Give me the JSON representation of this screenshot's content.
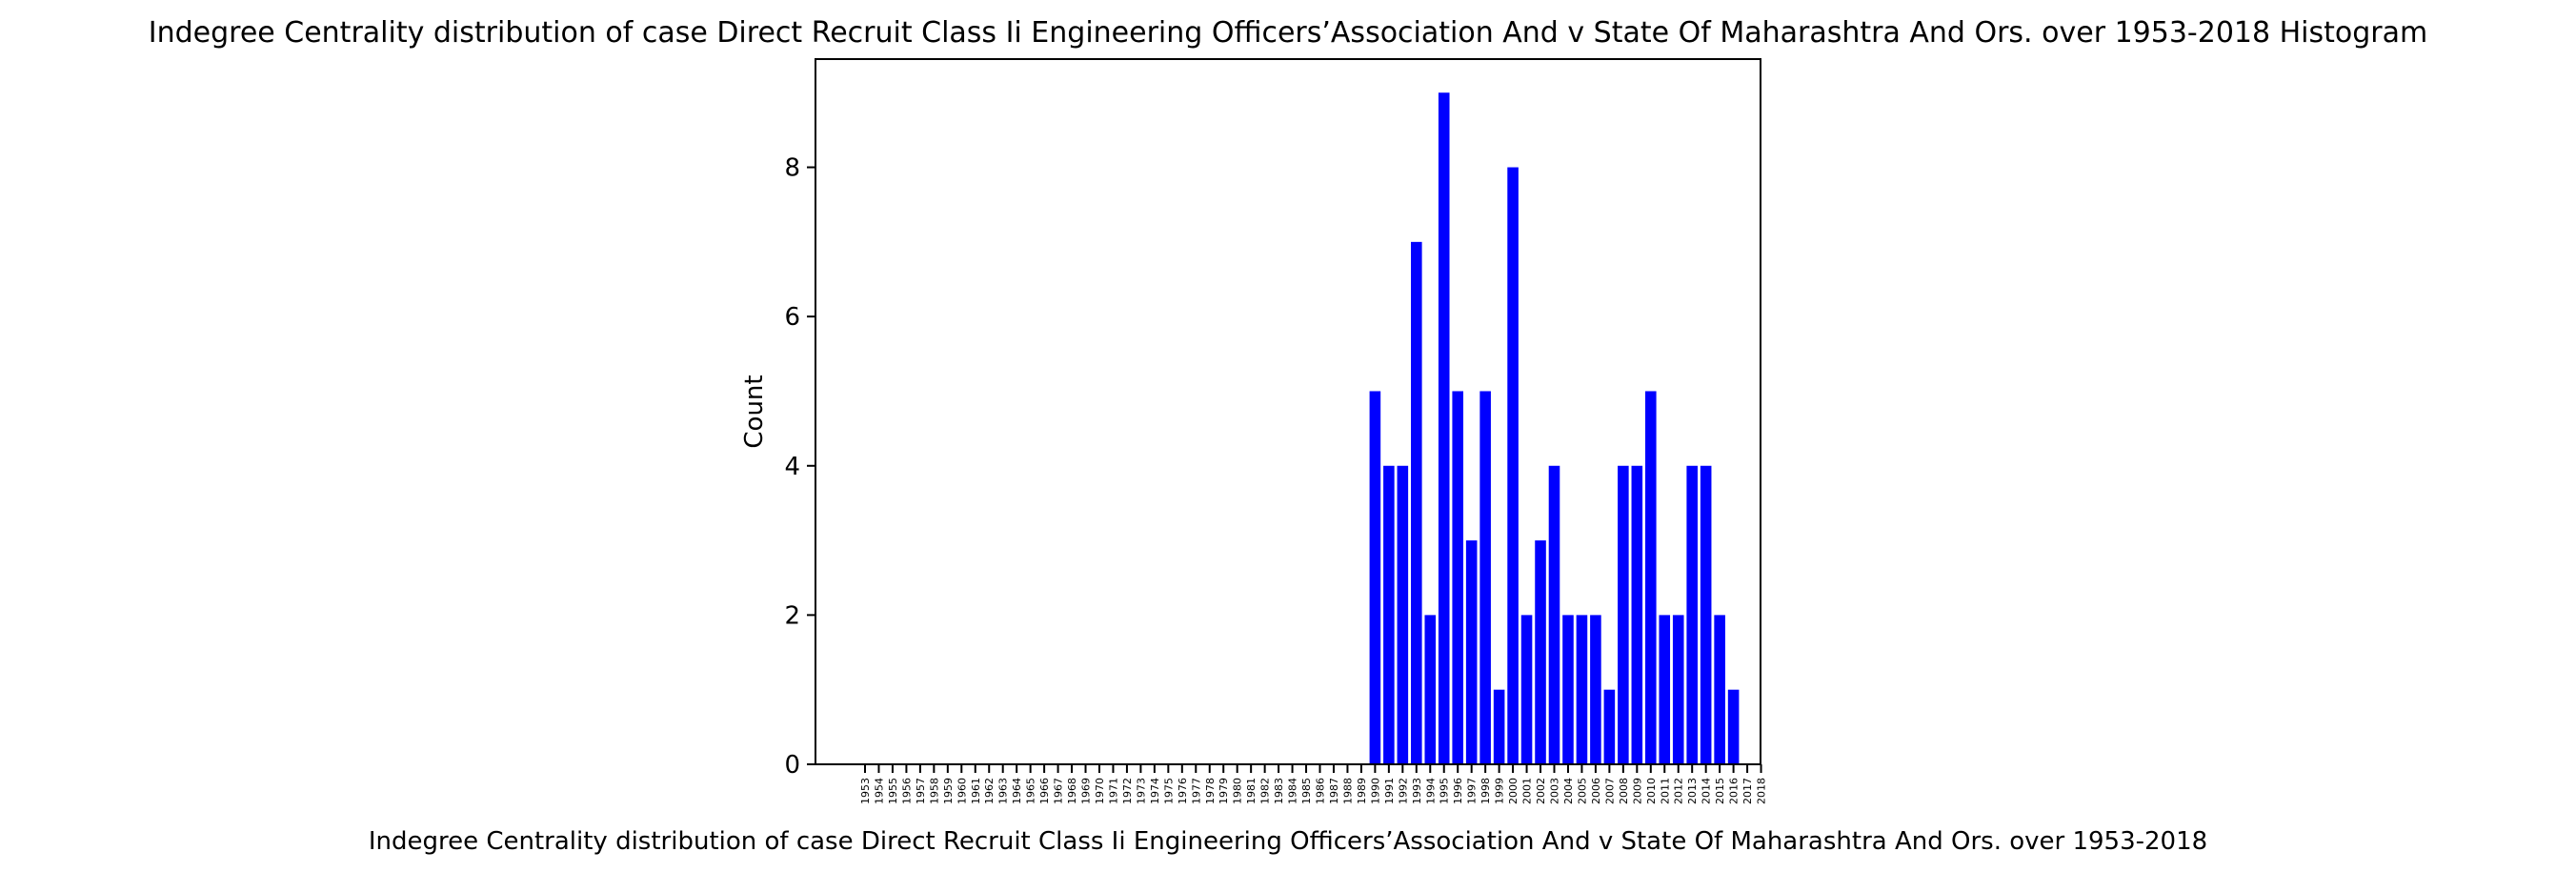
{
  "chart_data": {
    "type": "bar",
    "title": "Indegree Centrality distribution of case Direct Recruit Class Ii Engineering Officers’Association And v State Of Maharashtra And Ors. over 1953-2018 Histogram",
    "xlabel": "Indegree Centrality distribution of case Direct Recruit Class Ii Engineering Officers’Association And v State Of Maharashtra And Ors. over 1953-2018",
    "ylabel": "Count",
    "ylim": [
      0,
      9.45
    ],
    "yticks": [
      0,
      2,
      4,
      6,
      8
    ],
    "grid": false,
    "bar_color": "#0000ff",
    "categories": [
      "1953",
      "1954",
      "1955",
      "1956",
      "1957",
      "1958",
      "1959",
      "1960",
      "1961",
      "1962",
      "1963",
      "1964",
      "1965",
      "1966",
      "1967",
      "1968",
      "1969",
      "1970",
      "1971",
      "1972",
      "1973",
      "1974",
      "1975",
      "1976",
      "1977",
      "1978",
      "1979",
      "1980",
      "1981",
      "1982",
      "1983",
      "1984",
      "1985",
      "1986",
      "1987",
      "1988",
      "1989",
      "1990",
      "1991",
      "1992",
      "1993",
      "1994",
      "1995",
      "1996",
      "1997",
      "1998",
      "1999",
      "2000",
      "2001",
      "2002",
      "2003",
      "2004",
      "2005",
      "2006",
      "2007",
      "2008",
      "2009",
      "2010",
      "2011",
      "2012",
      "2013",
      "2014",
      "2015",
      "2016",
      "2017",
      "2018"
    ],
    "values": [
      0,
      0,
      0,
      0,
      0,
      0,
      0,
      0,
      0,
      0,
      0,
      0,
      0,
      0,
      0,
      0,
      0,
      0,
      0,
      0,
      0,
      0,
      0,
      0,
      0,
      0,
      0,
      0,
      0,
      0,
      0,
      0,
      0,
      0,
      0,
      0,
      0,
      5,
      4,
      4,
      7,
      2,
      9,
      5,
      3,
      5,
      1,
      8,
      2,
      3,
      4,
      2,
      2,
      2,
      1,
      4,
      4,
      5,
      2,
      2,
      4,
      4,
      2,
      1,
      0,
      0
    ]
  }
}
